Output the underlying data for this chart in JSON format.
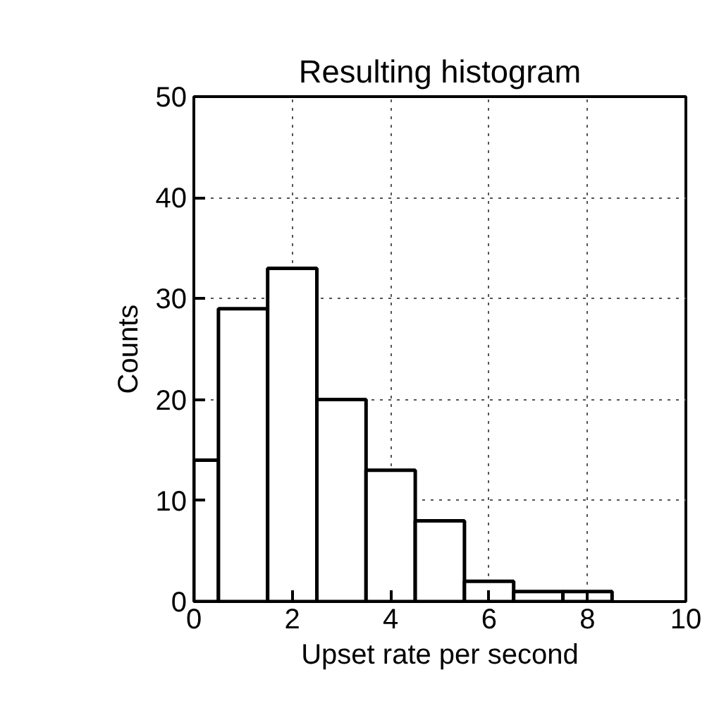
{
  "chart_data": {
    "type": "histogram",
    "title": "Resulting histogram",
    "xlabel": "Upset rate per second",
    "ylabel": "Counts",
    "bins": [
      0,
      0.5,
      1.5,
      2.5,
      3.5,
      4.5,
      5.5,
      6.5,
      7.5,
      8.5
    ],
    "values": [
      14,
      29,
      33,
      20,
      13,
      8,
      2,
      1,
      1
    ],
    "color": "#ffffff",
    "xlim": [
      0,
      10
    ],
    "xticks": [
      0,
      2,
      4,
      6,
      8,
      10
    ],
    "ylim": [
      0,
      50
    ],
    "yticks": [
      0,
      10,
      20,
      30,
      40,
      50
    ],
    "grid": true
  }
}
